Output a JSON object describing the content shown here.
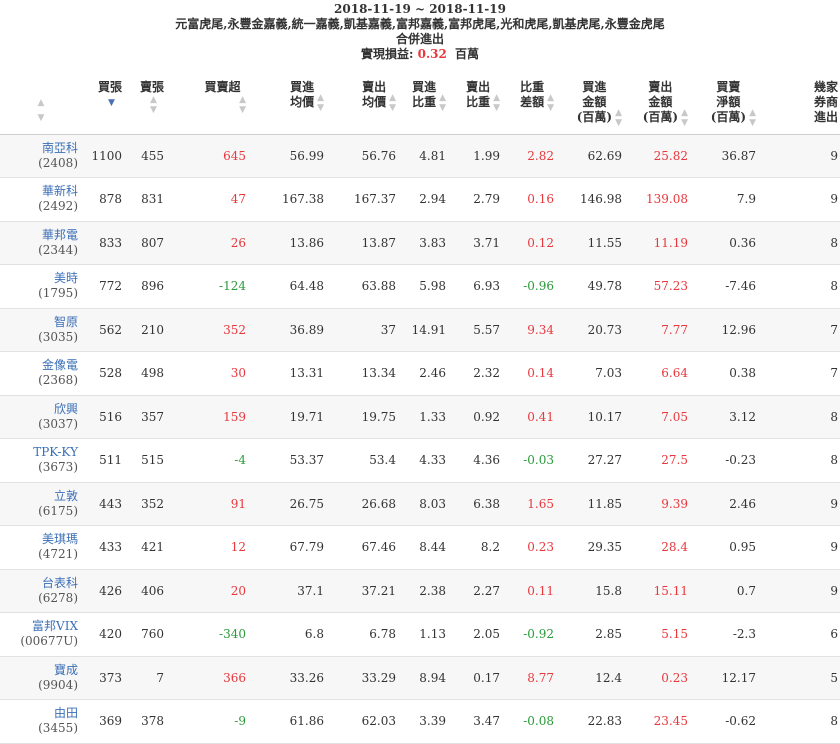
{
  "header": {
    "date_range": "2018-11-19 ~ 2018-11-19",
    "brokers": "元富虎尾,永豐金嘉義,統一嘉義,凱基嘉義,富邦嘉義,富邦虎尾,光和虎尾,凱基虎尾,永豐金虎尾",
    "subtitle": "合併進出",
    "pnl_label": "實現損益:",
    "pnl_value": "0.32",
    "pnl_unit": "百萬"
  },
  "columns": [
    {
      "key": "stock",
      "label": ""
    },
    {
      "key": "buy",
      "label": "買張"
    },
    {
      "key": "sell",
      "label": "賣張"
    },
    {
      "key": "net",
      "label": "買賣超"
    },
    {
      "key": "buy_avg",
      "label": "買進均價"
    },
    {
      "key": "sell_avg",
      "label": "賣出均價"
    },
    {
      "key": "buy_ratio",
      "label": "買進比重"
    },
    {
      "key": "sell_ratio",
      "label": "賣出比重"
    },
    {
      "key": "ratio_diff",
      "label": "比重差額"
    },
    {
      "key": "buy_amt",
      "label": "買進金額(百萬)"
    },
    {
      "key": "sell_amt",
      "label": "賣出金額(百萬)"
    },
    {
      "key": "float",
      "label": "買賣淨額(百萬)"
    },
    {
      "key": "brokers",
      "label": "幾家券商進出"
    }
  ],
  "column_labels": {
    "buy": "買張",
    "sell": "賣張",
    "net": "買賣超",
    "buy_avg_1": "買進",
    "buy_avg_2": "均價",
    "sell_avg_1": "賣出",
    "sell_avg_2": "均價",
    "buy_ratio_1": "買進",
    "buy_ratio_2": "比重",
    "sell_ratio_1": "賣出",
    "sell_ratio_2": "比重",
    "ratio_diff_1": "比重",
    "ratio_diff_2": "差額",
    "buy_amt_1": "買進",
    "buy_amt_2": "金額",
    "buy_amt_3": "(百萬)",
    "sell_amt_1": "賣出",
    "sell_amt_2": "金額",
    "sell_amt_3": "(百萬)",
    "float_1": "買賣",
    "float_2": "淨額",
    "float_3": "(百萬)",
    "brokers_1": "幾家",
    "brokers_2": "券商",
    "brokers_3": "進出"
  },
  "rows": [
    {
      "name": "南亞科",
      "code": "(2408)",
      "buy": "1100",
      "sell": "455",
      "net": "645",
      "buy_avg": "56.99",
      "sell_avg": "56.76",
      "buy_ratio": "4.81",
      "sell_ratio": "1.99",
      "ratio_diff": "2.82",
      "buy_amt": "62.69",
      "sell_amt": "25.82",
      "float": "36.87",
      "brokers": "9"
    },
    {
      "name": "華新科",
      "code": "(2492)",
      "buy": "878",
      "sell": "831",
      "net": "47",
      "buy_avg": "167.38",
      "sell_avg": "167.37",
      "buy_ratio": "2.94",
      "sell_ratio": "2.79",
      "ratio_diff": "0.16",
      "buy_amt": "146.98",
      "sell_amt": "139.08",
      "float": "7.9",
      "brokers": "9"
    },
    {
      "name": "華邦電",
      "code": "(2344)",
      "buy": "833",
      "sell": "807",
      "net": "26",
      "buy_avg": "13.86",
      "sell_avg": "13.87",
      "buy_ratio": "3.83",
      "sell_ratio": "3.71",
      "ratio_diff": "0.12",
      "buy_amt": "11.55",
      "sell_amt": "11.19",
      "float": "0.36",
      "brokers": "8"
    },
    {
      "name": "美時",
      "code": "(1795)",
      "buy": "772",
      "sell": "896",
      "net": "-124",
      "buy_avg": "64.48",
      "sell_avg": "63.88",
      "buy_ratio": "5.98",
      "sell_ratio": "6.93",
      "ratio_diff": "-0.96",
      "buy_amt": "49.78",
      "sell_amt": "57.23",
      "float": "-7.46",
      "brokers": "8"
    },
    {
      "name": "智原",
      "code": "(3035)",
      "buy": "562",
      "sell": "210",
      "net": "352",
      "buy_avg": "36.89",
      "sell_avg": "37",
      "buy_ratio": "14.91",
      "sell_ratio": "5.57",
      "ratio_diff": "9.34",
      "buy_amt": "20.73",
      "sell_amt": "7.77",
      "float": "12.96",
      "brokers": "7"
    },
    {
      "name": "金像電",
      "code": "(2368)",
      "buy": "528",
      "sell": "498",
      "net": "30",
      "buy_avg": "13.31",
      "sell_avg": "13.34",
      "buy_ratio": "2.46",
      "sell_ratio": "2.32",
      "ratio_diff": "0.14",
      "buy_amt": "7.03",
      "sell_amt": "6.64",
      "float": "0.38",
      "brokers": "7"
    },
    {
      "name": "欣興",
      "code": "(3037)",
      "buy": "516",
      "sell": "357",
      "net": "159",
      "buy_avg": "19.71",
      "sell_avg": "19.75",
      "buy_ratio": "1.33",
      "sell_ratio": "0.92",
      "ratio_diff": "0.41",
      "buy_amt": "10.17",
      "sell_amt": "7.05",
      "float": "3.12",
      "brokers": "8"
    },
    {
      "name": "TPK-KY",
      "code": "(3673)",
      "buy": "511",
      "sell": "515",
      "net": "-4",
      "buy_avg": "53.37",
      "sell_avg": "53.4",
      "buy_ratio": "4.33",
      "sell_ratio": "4.36",
      "ratio_diff": "-0.03",
      "buy_amt": "27.27",
      "sell_amt": "27.5",
      "float": "-0.23",
      "brokers": "8"
    },
    {
      "name": "立敦",
      "code": "(6175)",
      "buy": "443",
      "sell": "352",
      "net": "91",
      "buy_avg": "26.75",
      "sell_avg": "26.68",
      "buy_ratio": "8.03",
      "sell_ratio": "6.38",
      "ratio_diff": "1.65",
      "buy_amt": "11.85",
      "sell_amt": "9.39",
      "float": "2.46",
      "brokers": "9"
    },
    {
      "name": "美琪瑪",
      "code": "(4721)",
      "buy": "433",
      "sell": "421",
      "net": "12",
      "buy_avg": "67.79",
      "sell_avg": "67.46",
      "buy_ratio": "8.44",
      "sell_ratio": "8.2",
      "ratio_diff": "0.23",
      "buy_amt": "29.35",
      "sell_amt": "28.4",
      "float": "0.95",
      "brokers": "9"
    },
    {
      "name": "台表科",
      "code": "(6278)",
      "buy": "426",
      "sell": "406",
      "net": "20",
      "buy_avg": "37.1",
      "sell_avg": "37.21",
      "buy_ratio": "2.38",
      "sell_ratio": "2.27",
      "ratio_diff": "0.11",
      "buy_amt": "15.8",
      "sell_amt": "15.11",
      "float": "0.7",
      "brokers": "9"
    },
    {
      "name": "富邦VIX",
      "code": "(00677U)",
      "buy": "420",
      "sell": "760",
      "net": "-340",
      "buy_avg": "6.8",
      "sell_avg": "6.78",
      "buy_ratio": "1.13",
      "sell_ratio": "2.05",
      "ratio_diff": "-0.92",
      "buy_amt": "2.85",
      "sell_amt": "5.15",
      "float": "-2.3",
      "brokers": "6"
    },
    {
      "name": "寶成",
      "code": "(9904)",
      "buy": "373",
      "sell": "7",
      "net": "366",
      "buy_avg": "33.26",
      "sell_avg": "33.29",
      "buy_ratio": "8.94",
      "sell_ratio": "0.17",
      "ratio_diff": "8.77",
      "buy_amt": "12.4",
      "sell_amt": "0.23",
      "float": "12.17",
      "brokers": "5"
    },
    {
      "name": "由田",
      "code": "(3455)",
      "buy": "369",
      "sell": "378",
      "net": "-9",
      "buy_avg": "61.86",
      "sell_avg": "62.03",
      "buy_ratio": "3.39",
      "sell_ratio": "3.47",
      "ratio_diff": "-0.08",
      "buy_amt": "22.83",
      "sell_amt": "23.45",
      "float": "-0.62",
      "brokers": "8"
    }
  ],
  "colors": {
    "positive": "#e8383d",
    "negative": "#2a9a3a",
    "link": "#3b6fb6",
    "sort_active": "#4a6fb5"
  }
}
